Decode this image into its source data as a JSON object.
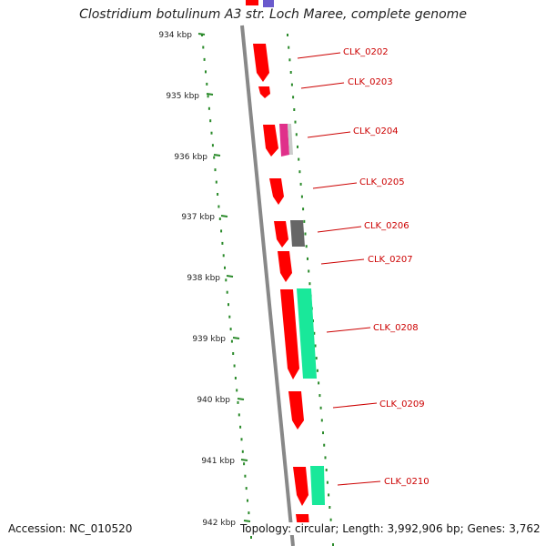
{
  "title": "Clostridium botulinum A3 str. Loch Maree, complete genome",
  "accession": "Accession: NC_010520",
  "topology": "Topology: circular; Length: 3,992,906 bp; Genes: 3,762",
  "ticks": [
    {
      "label": "934 kbp"
    },
    {
      "label": "935 kbp"
    },
    {
      "label": "936 kbp"
    },
    {
      "label": "937 kbp"
    },
    {
      "label": "938 kbp"
    },
    {
      "label": "939 kbp"
    },
    {
      "label": "940 kbp"
    },
    {
      "label": "941 kbp"
    },
    {
      "label": "942 kbp"
    }
  ],
  "genes": [
    {
      "label": "CLK_0202"
    },
    {
      "label": "CLK_0203"
    },
    {
      "label": "CLK_0204"
    },
    {
      "label": "CLK_0205"
    },
    {
      "label": "CLK_0206"
    },
    {
      "label": "CLK_0207"
    },
    {
      "label": "CLK_0208"
    },
    {
      "label": "CLK_0209"
    },
    {
      "label": "CLK_0210"
    }
  ],
  "colors": {
    "gene": "#ff0000",
    "label": "#cc0000",
    "tick": "#2a8a2a",
    "backbone": "#888888",
    "companion_green": "#19e89a",
    "companion_magenta": "#e0308a",
    "companion_gray": "#666666",
    "top_purple": "#6a5acd"
  }
}
